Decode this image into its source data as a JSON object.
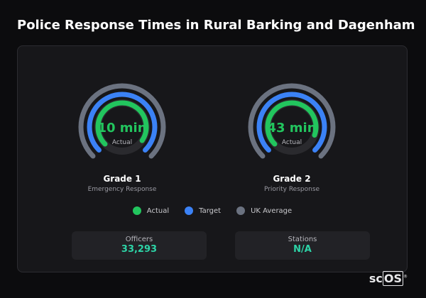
{
  "title": "Police Response Times in Rural Barking and Dagenham",
  "chart_data": {
    "type": "radial-bar",
    "gauges": [
      {
        "label": "Grade 1",
        "sublabel": "Emergency Response",
        "value_text": "10 min",
        "value_caption": "Actual",
        "actual": 0.72,
        "target": 0.75,
        "uk_average": 0.75
      },
      {
        "label": "Grade 2",
        "sublabel": "Priority Response",
        "value_text": "43 min",
        "value_caption": "Actual",
        "actual": 0.68,
        "target": 0.75,
        "uk_average": 0.75
      }
    ],
    "legend": [
      {
        "label": "Actual",
        "color": "#22c55e"
      },
      {
        "label": "Target",
        "color": "#3b82f6"
      },
      {
        "label": "UK Average",
        "color": "#6b7280"
      }
    ]
  },
  "stats": [
    {
      "label": "Officers",
      "value": "33,293"
    },
    {
      "label": "Stations",
      "value": "N/A"
    }
  ],
  "colors": {
    "actual": "#22c55e",
    "target": "#3b82f6",
    "uk_average": "#6b7280",
    "stat_value": "#2dd4a7"
  },
  "watermark": {
    "prefix": "sc",
    "boxed": "OS",
    "mark": "®"
  }
}
